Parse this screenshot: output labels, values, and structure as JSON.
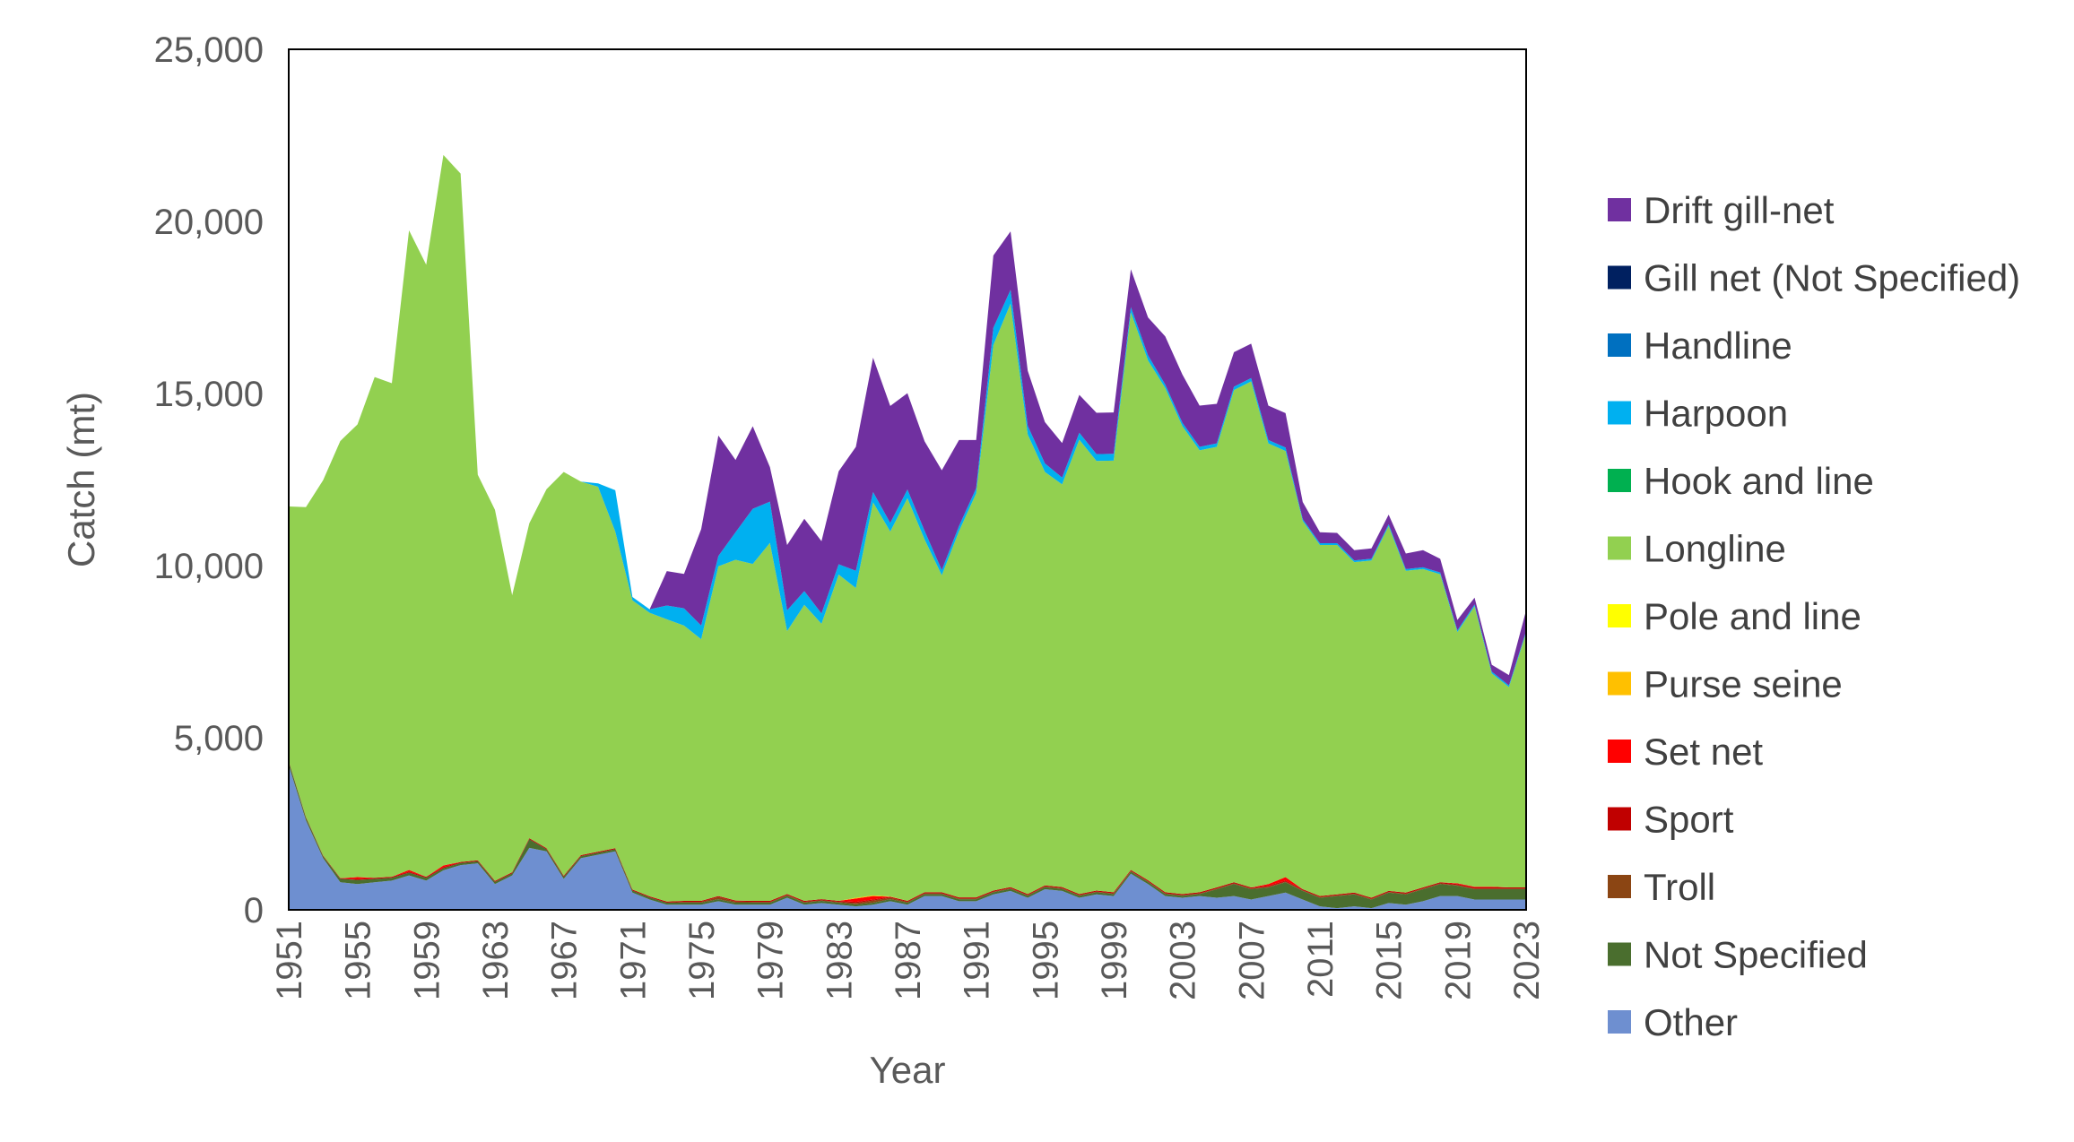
{
  "chart_data": {
    "type": "area",
    "stacked": true,
    "title": "",
    "xlabel": "Year",
    "ylabel": "Catch (mt)",
    "ylim": [
      0,
      25000
    ],
    "yticks": [
      0,
      5000,
      10000,
      15000,
      20000,
      25000
    ],
    "ytick_labels": [
      "0",
      "5,000",
      "10,000",
      "15,000",
      "20,000",
      "25,000"
    ],
    "xlim": [
      1951,
      2023
    ],
    "xticks": [
      1951,
      1955,
      1959,
      1963,
      1967,
      1971,
      1975,
      1979,
      1983,
      1987,
      1991,
      1995,
      1999,
      2003,
      2007,
      2011,
      2015,
      2019,
      2023
    ],
    "xtick_labels": [
      "1951",
      "1955",
      "1959",
      "1963",
      "1967",
      "1971",
      "1975",
      "1979",
      "1983",
      "1987",
      "1991",
      "1995",
      "1999",
      "2003",
      "2007",
      "2011",
      "2015",
      "2019",
      "2023"
    ],
    "grid": false,
    "legend_position": "right",
    "legend_order": [
      "Drift gill-net",
      "Gill net (Not Specified)",
      "Handline",
      "Harpoon",
      "Hook and line",
      "Longline",
      "Pole and line",
      "Purse seine",
      "Set net",
      "Sport",
      "Troll",
      "Not Specified",
      "Other"
    ],
    "series_colors": {
      "Other": "#6e8fd0",
      "Not Specified": "#4a6e2e",
      "Troll": "#8b4513",
      "Sport": "#c00000",
      "Set net": "#ff0000",
      "Purse seine": "#ffc000",
      "Pole and line": "#ffff00",
      "Longline": "#92d050",
      "Hook and line": "#00b050",
      "Harpoon": "#00b0f0",
      "Handline": "#0070c0",
      "Gill net (Not Specified)": "#002060",
      "Drift gill-net": "#7030a0"
    },
    "x": [
      1951,
      1952,
      1953,
      1954,
      1955,
      1956,
      1957,
      1958,
      1959,
      1960,
      1961,
      1962,
      1963,
      1964,
      1965,
      1966,
      1967,
      1968,
      1969,
      1970,
      1971,
      1972,
      1973,
      1974,
      1975,
      1976,
      1977,
      1978,
      1979,
      1980,
      1981,
      1982,
      1983,
      1984,
      1985,
      1986,
      1987,
      1988,
      1989,
      1990,
      1991,
      1992,
      1993,
      1994,
      1995,
      1996,
      1997,
      1998,
      1999,
      2000,
      2001,
      2002,
      2003,
      2004,
      2005,
      2006,
      2007,
      2008,
      2009,
      2010,
      2011,
      2012,
      2013,
      2014,
      2015,
      2016,
      2017,
      2018,
      2019,
      2020,
      2021,
      2022,
      2023
    ],
    "series": [
      {
        "name": "Other",
        "values": [
          4200,
          2600,
          1500,
          800,
          750,
          800,
          850,
          1000,
          850,
          1150,
          1300,
          1350,
          750,
          1000,
          1800,
          1700,
          900,
          1500,
          1600,
          1700,
          500,
          300,
          150,
          150,
          150,
          250,
          150,
          150,
          150,
          350,
          150,
          200,
          150,
          100,
          150,
          250,
          150,
          400,
          400,
          250,
          250,
          450,
          550,
          350,
          600,
          550,
          350,
          450,
          400,
          1050,
          750,
          400,
          350,
          400,
          350,
          400,
          300,
          400,
          500,
          300,
          100,
          50,
          100,
          50,
          200,
          150,
          250,
          400,
          400,
          300,
          300,
          300,
          300
        ]
      },
      {
        "name": "Not Specified",
        "values": [
          100,
          80,
          60,
          100,
          120,
          100,
          80,
          80,
          80,
          60,
          60,
          60,
          60,
          60,
          250,
          60,
          60,
          60,
          60,
          60,
          60,
          60,
          60,
          60,
          60,
          60,
          60,
          60,
          60,
          60,
          60,
          60,
          60,
          60,
          60,
          60,
          60,
          60,
          60,
          60,
          60,
          60,
          60,
          60,
          60,
          60,
          60,
          60,
          60,
          60,
          60,
          60,
          60,
          60,
          250,
          350,
          300,
          250,
          300,
          250,
          250,
          350,
          350,
          250,
          300,
          300,
          350,
          350,
          300,
          300,
          300,
          300,
          300
        ]
      },
      {
        "name": "Troll",
        "values": [
          0,
          0,
          0,
          0,
          0,
          0,
          0,
          0,
          0,
          0,
          0,
          0,
          0,
          0,
          0,
          0,
          0,
          0,
          0,
          0,
          0,
          0,
          0,
          20,
          20,
          60,
          30,
          20,
          20,
          20,
          20,
          20,
          20,
          40,
          60,
          40,
          20,
          20,
          20,
          20,
          20,
          20,
          20,
          20,
          20,
          20,
          20,
          20,
          20,
          20,
          20,
          20,
          20,
          20,
          20,
          20,
          20,
          20,
          20,
          20,
          20,
          20,
          20,
          20,
          20,
          20,
          20,
          20,
          20,
          20,
          20,
          20,
          20
        ]
      },
      {
        "name": "Sport",
        "values": [
          20,
          20,
          20,
          20,
          30,
          30,
          30,
          30,
          30,
          30,
          30,
          30,
          30,
          30,
          30,
          30,
          30,
          30,
          30,
          30,
          30,
          30,
          30,
          30,
          30,
          30,
          30,
          30,
          30,
          30,
          30,
          30,
          30,
          30,
          30,
          30,
          30,
          30,
          30,
          30,
          30,
          30,
          30,
          30,
          30,
          30,
          30,
          30,
          30,
          30,
          30,
          30,
          30,
          30,
          30,
          30,
          30,
          30,
          30,
          30,
          30,
          30,
          30,
          30,
          30,
          30,
          30,
          30,
          30,
          30,
          30,
          30,
          30
        ]
      },
      {
        "name": "Set net",
        "values": [
          0,
          0,
          0,
          0,
          50,
          0,
          0,
          50,
          0,
          50,
          0,
          0,
          0,
          0,
          0,
          0,
          0,
          0,
          0,
          0,
          0,
          0,
          0,
          0,
          0,
          0,
          0,
          0,
          0,
          0,
          0,
          0,
          0,
          100,
          100,
          0,
          0,
          0,
          0,
          0,
          0,
          0,
          0,
          0,
          0,
          0,
          0,
          0,
          0,
          0,
          0,
          0,
          0,
          0,
          0,
          0,
          0,
          50,
          100,
          0,
          0,
          0,
          0,
          0,
          0,
          0,
          0,
          0,
          20,
          20,
          20,
          0,
          0
        ]
      },
      {
        "name": "Purse seine",
        "values": [
          0,
          0,
          0,
          0,
          0,
          0,
          0,
          0,
          0,
          0,
          0,
          0,
          0,
          0,
          0,
          0,
          0,
          0,
          0,
          0,
          0,
          0,
          0,
          0,
          0,
          0,
          0,
          0,
          0,
          0,
          0,
          0,
          0,
          20,
          20,
          10,
          0,
          0,
          0,
          0,
          0,
          0,
          0,
          0,
          0,
          0,
          0,
          0,
          0,
          0,
          0,
          0,
          0,
          0,
          0,
          0,
          0,
          0,
          0,
          0,
          0,
          0,
          0,
          0,
          0,
          0,
          0,
          0,
          0,
          0,
          0,
          0,
          0
        ]
      },
      {
        "name": "Pole and line",
        "values": [
          0,
          0,
          0,
          0,
          0,
          0,
          0,
          0,
          0,
          0,
          0,
          0,
          0,
          0,
          0,
          0,
          0,
          0,
          0,
          0,
          0,
          0,
          0,
          0,
          0,
          0,
          0,
          0,
          0,
          0,
          0,
          0,
          0,
          0,
          0,
          0,
          0,
          0,
          0,
          0,
          0,
          0,
          0,
          0,
          0,
          0,
          0,
          0,
          0,
          0,
          0,
          0,
          0,
          0,
          0,
          0,
          0,
          0,
          0,
          0,
          0,
          0,
          0,
          0,
          0,
          0,
          0,
          0,
          0,
          0,
          0,
          0,
          0
        ]
      },
      {
        "name": "Longline",
        "values": [
          7400,
          9000,
          10900,
          12700,
          13150,
          14550,
          14340,
          18580,
          17780,
          20640,
          20000,
          11200,
          10780,
          8050,
          9150,
          10430,
          11730,
          10850,
          10600,
          9200,
          8400,
          8240,
          8200,
          8000,
          7600,
          9580,
          9900,
          9790,
          10400,
          7640,
          8600,
          8000,
          9480,
          9000,
          11420,
          10600,
          11700,
          10250,
          9210,
          10640,
          11740,
          15850,
          16950,
          13350,
          12010,
          11700,
          13200,
          12480,
          12540,
          16200,
          15100,
          14650,
          13590,
          12840,
          12800,
          14300,
          14700,
          12800,
          12380,
          10700,
          10200,
          10150,
          9600,
          9800,
          10600,
          9350,
          9250,
          8950,
          7300,
          8150,
          6200,
          5820,
          7400
        ]
      },
      {
        "name": "Hook and line",
        "values": [
          0,
          0,
          0,
          0,
          0,
          0,
          0,
          0,
          0,
          0,
          0,
          0,
          0,
          0,
          0,
          0,
          0,
          0,
          0,
          0,
          0,
          0,
          0,
          0,
          0,
          0,
          0,
          0,
          0,
          0,
          0,
          0,
          0,
          0,
          0,
          0,
          0,
          0,
          0,
          0,
          0,
          0,
          0,
          0,
          0,
          0,
          0,
          0,
          0,
          0,
          0,
          0,
          0,
          0,
          0,
          0,
          0,
          0,
          0,
          0,
          0,
          0,
          0,
          0,
          0,
          0,
          0,
          0,
          0,
          0,
          0,
          0,
          0
        ]
      },
      {
        "name": "Harpoon",
        "values": [
          0,
          0,
          0,
          0,
          0,
          0,
          0,
          0,
          0,
          0,
          0,
          0,
          0,
          0,
          0,
          0,
          0,
          0,
          100,
          1200,
          100,
          100,
          400,
          500,
          400,
          300,
          800,
          1600,
          1200,
          600,
          400,
          300,
          300,
          500,
          300,
          250,
          250,
          250,
          150,
          150,
          150,
          500,
          400,
          250,
          250,
          200,
          200,
          200,
          200,
          150,
          150,
          100,
          100,
          100,
          100,
          100,
          100,
          100,
          100,
          50,
          50,
          50,
          50,
          50,
          50,
          50,
          50,
          50,
          50,
          50,
          50,
          50,
          50
        ]
      },
      {
        "name": "Handline",
        "values": [
          0,
          0,
          0,
          0,
          0,
          0,
          0,
          0,
          0,
          0,
          0,
          0,
          0,
          0,
          0,
          0,
          0,
          0,
          0,
          0,
          0,
          0,
          0,
          0,
          0,
          0,
          0,
          0,
          0,
          0,
          0,
          0,
          0,
          0,
          0,
          0,
          0,
          0,
          0,
          0,
          0,
          0,
          0,
          0,
          0,
          0,
          0,
          0,
          0,
          0,
          0,
          0,
          0,
          0,
          0,
          0,
          0,
          0,
          0,
          0,
          0,
          0,
          0,
          0,
          0,
          0,
          0,
          0,
          0,
          0,
          0,
          0,
          0
        ]
      },
      {
        "name": "Gill net (Not Specified)",
        "values": [
          0,
          0,
          0,
          0,
          0,
          0,
          0,
          0,
          0,
          0,
          0,
          0,
          0,
          0,
          0,
          0,
          0,
          0,
          0,
          0,
          0,
          0,
          0,
          0,
          0,
          0,
          0,
          0,
          0,
          0,
          0,
          0,
          0,
          0,
          0,
          0,
          0,
          0,
          0,
          0,
          0,
          0,
          0,
          0,
          0,
          0,
          0,
          0,
          0,
          0,
          0,
          0,
          0,
          0,
          0,
          0,
          0,
          0,
          0,
          0,
          0,
          0,
          0,
          0,
          0,
          0,
          0,
          0,
          0,
          0,
          0,
          0,
          0
        ]
      },
      {
        "name": "Drift gill-net",
        "values": [
          0,
          0,
          0,
          0,
          0,
          0,
          0,
          0,
          0,
          0,
          0,
          0,
          0,
          0,
          0,
          0,
          0,
          0,
          0,
          0,
          0,
          0,
          1000,
          1000,
          2800,
          3500,
          2100,
          2400,
          1000,
          1900,
          2100,
          2100,
          2700,
          3600,
          3900,
          3400,
          2800,
          2600,
          2900,
          2500,
          1400,
          2100,
          1700,
          1600,
          1200,
          1000,
          1100,
          1200,
          1200,
          1100,
          1100,
          1400,
          1400,
          1200,
          1150,
          1000,
          1000,
          1000,
          1000,
          500,
          320,
          300,
          300,
          300,
          280,
          450,
          500,
          400,
          300,
          200,
          200,
          300,
          600
        ]
      }
    ]
  }
}
